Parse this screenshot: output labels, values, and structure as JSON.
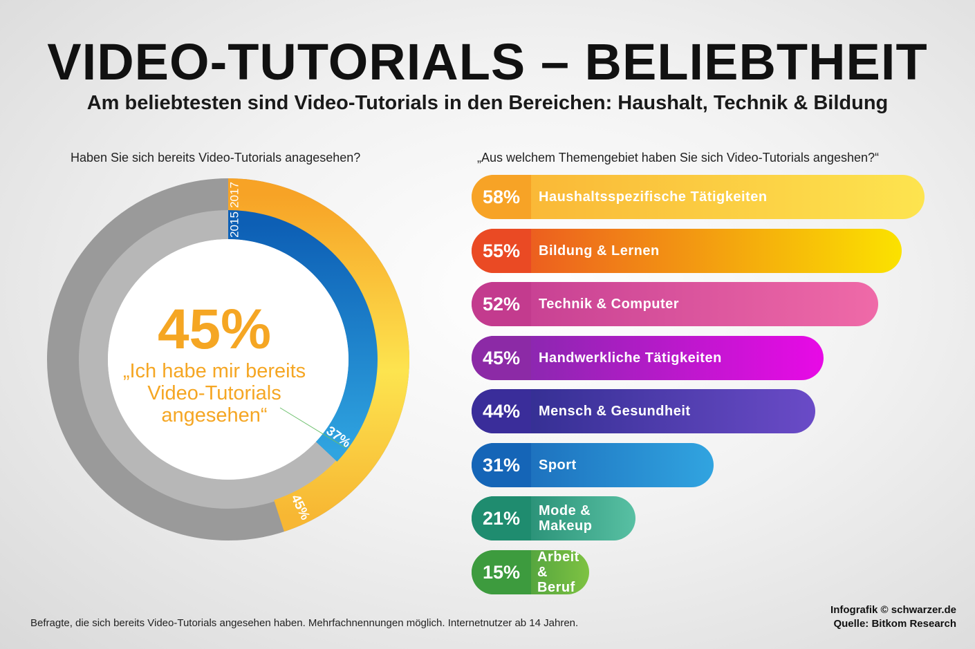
{
  "title": "VIDEO-TUTORIALS – BELIEBTHEIT",
  "subtitle": "Am beliebtesten sind Video-Tutorials in den Bereichen: Haushalt, Technik & Bildung",
  "left_question": "Haben Sie sich bereits Video-Tutorials anagesehen?",
  "right_question": "„Aus welchem Themengebiet haben Sie sich Video-Tutorials angeshen?“",
  "donut_big_value": "45%",
  "donut_quote": "„Ich habe mir bereits Video-Tutorials angesehen“",
  "footnote": "Befragte, die sich bereits Video-Tutorials angesehen haben. Mehrfachnennungen möglich. Internetnutzer ab 14 Jahren.",
  "credit": "Infografik © schwarzer.de",
  "source": "Quelle: Bitkom Research",
  "chart_data": [
    {
      "type": "pie",
      "series": [
        {
          "name": "2017",
          "value": 45,
          "value_label": "45%",
          "color": "#fbc02d"
        },
        {
          "name": "2015",
          "value": 37,
          "value_label": "37%",
          "color": "#1e88d8"
        }
      ]
    },
    {
      "type": "bar",
      "categories": [
        "Haushaltsspezifische Tätigkeiten",
        "Bildung & Lernen",
        "Technik & Computer",
        "Handwerkliche Tätigkeiten",
        "Mensch & Gesundheit",
        "Sport",
        "Mode & Makeup",
        "Arbeit & Beruf"
      ],
      "values": [
        58,
        55,
        52,
        45,
        44,
        31,
        21,
        15
      ],
      "value_labels": [
        "58%",
        "55%",
        "52%",
        "45%",
        "44%",
        "31%",
        "21%",
        "15%"
      ],
      "colors": [
        {
          "badge": "#f7a326",
          "bar_start": "#f9b233",
          "bar_end": "#fde44f"
        },
        {
          "badge": "#ea4a24",
          "bar_start": "#ea4a24",
          "bar_end": "#fbe200"
        },
        {
          "badge": "#c33b8e",
          "bar_start": "#c23b90",
          "bar_end": "#ef6aa8"
        },
        {
          "badge": "#8c2aa6",
          "bar_start": "#7a2da6",
          "bar_end": "#e80ae6"
        },
        {
          "badge": "#3a2d9a",
          "bar_start": "#2b2a8a",
          "bar_end": "#6a4bc7"
        },
        {
          "badge": "#1565b7",
          "bar_start": "#1762b4",
          "bar_end": "#31a4e0"
        },
        {
          "badge": "#1f8c6f",
          "bar_start": "#137a61",
          "bar_end": "#58c0a3"
        },
        {
          "badge": "#3d9b3e",
          "bar_start": "#2e8a3c",
          "bar_end": "#7ec242"
        }
      ]
    }
  ]
}
